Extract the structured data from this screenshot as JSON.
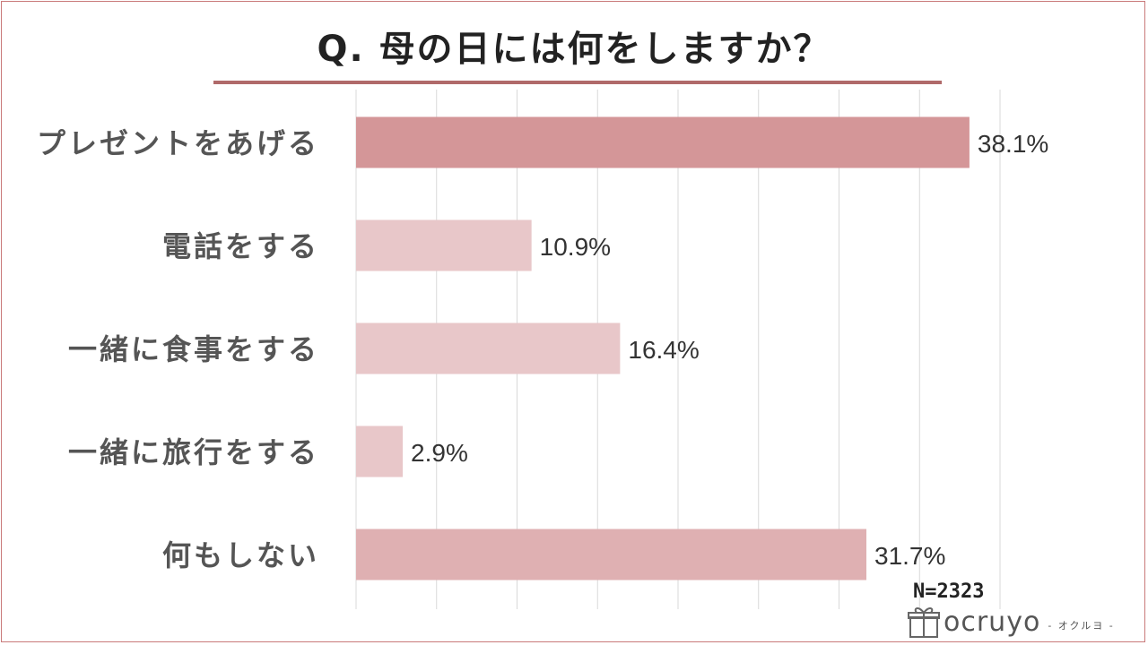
{
  "title": "Q. 母の日には何をしますか？",
  "n_label": "N=2323",
  "logo": {
    "text": "ocruyo",
    "sub": "- オクルヨ -",
    "icon": "gift-box-icon"
  },
  "colors": {
    "bar_primary": "#d49698",
    "bar_secondary": "#dfb0b2",
    "bar_light": "#e8c7c9",
    "grid": "#d9d9d9",
    "frame": "#c97a7a",
    "title_rule": "#b06a6a"
  },
  "chart_data": {
    "type": "bar",
    "orientation": "horizontal",
    "title": "Q. 母の日には何をしますか？",
    "categories": [
      "プレゼントをあげる",
      "電話をする",
      "一緒に食事をする",
      "一緒に旅行をする",
      "何もしない"
    ],
    "values": [
      38.1,
      10.9,
      16.4,
      2.9,
      31.7
    ],
    "value_labels": [
      "38.1%",
      "10.9%",
      "16.4%",
      "2.9%",
      "31.7%"
    ],
    "xlim": [
      0,
      40
    ],
    "grid": true,
    "unit": "%"
  }
}
